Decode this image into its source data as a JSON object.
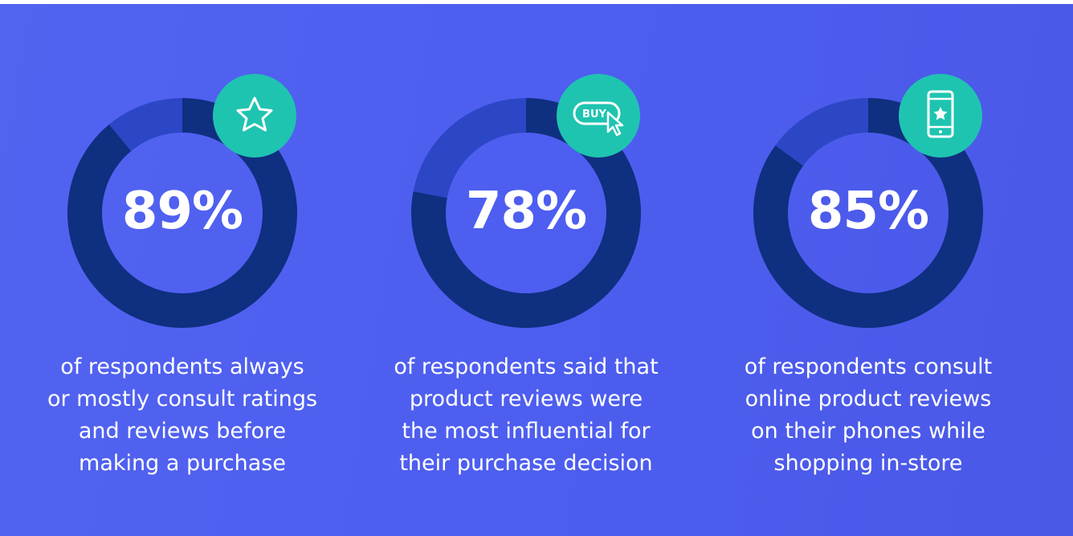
{
  "colors": {
    "background": "#4e5ff0",
    "ring_primary": "#0f2f80",
    "ring_remainder": "#2c47c6",
    "badge": "#1fc4b0",
    "text": "#ffffff"
  },
  "stats": [
    {
      "value_label": "89%",
      "icon": "star-icon",
      "caption_lines": [
        "of respondents always",
        "or mostly consult ratings",
        "and reviews before",
        "making a purchase"
      ]
    },
    {
      "value_label": "78%",
      "icon": "buy-cursor-icon",
      "icon_text": "BUY",
      "caption_lines": [
        "of respondents said that",
        "product reviews were",
        "the most influential for",
        "their purchase decision"
      ]
    },
    {
      "value_label": "85%",
      "icon": "phone-star-icon",
      "caption_lines": [
        "of respondents consult",
        "online product reviews",
        "on their phones while",
        "shopping in-store"
      ]
    }
  ],
  "chart_data": {
    "type": "pie",
    "variant": "donut",
    "charts": [
      {
        "value": 89,
        "remainder": 11
      },
      {
        "value": 78,
        "remainder": 22
      },
      {
        "value": 85,
        "remainder": 15
      }
    ]
  }
}
